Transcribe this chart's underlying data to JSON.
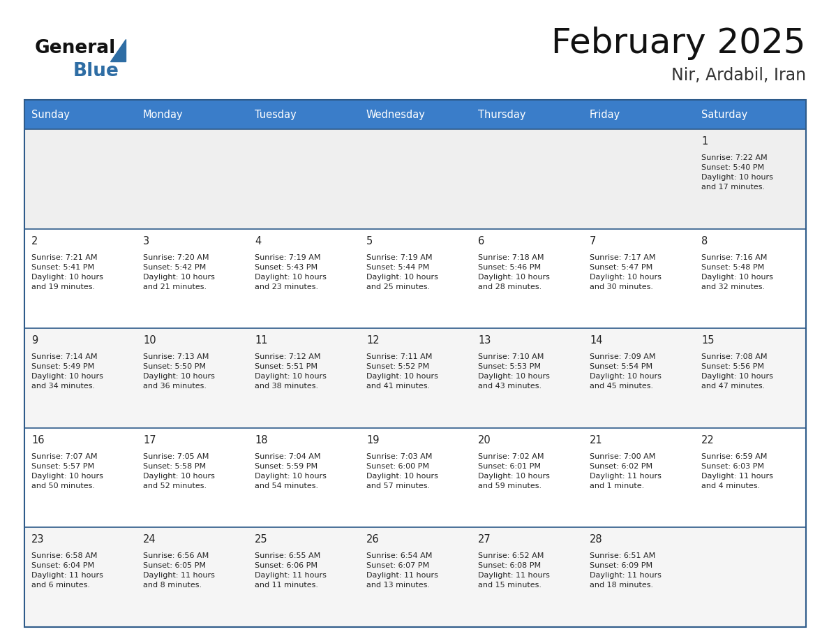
{
  "title": "February 2025",
  "subtitle": "Nir, Ardabil, Iran",
  "days_of_week": [
    "Sunday",
    "Monday",
    "Tuesday",
    "Wednesday",
    "Thursday",
    "Friday",
    "Saturday"
  ],
  "header_bg": "#3A7DC9",
  "header_text": "#FFFFFF",
  "row0_bg": "#EFEFEF",
  "row_bg_white": "#FFFFFF",
  "row_bg_gray": "#F5F5F5",
  "divider_color": "#2E5B8A",
  "text_color": "#222222",
  "title_color": "#111111",
  "subtitle_color": "#333333",
  "logo_general_color": "#111111",
  "logo_blue_color": "#2E6DA4",
  "logo_triangle_color": "#2E6DA4",
  "calendar_data": [
    [
      {
        "day": null,
        "info": null
      },
      {
        "day": null,
        "info": null
      },
      {
        "day": null,
        "info": null
      },
      {
        "day": null,
        "info": null
      },
      {
        "day": null,
        "info": null
      },
      {
        "day": null,
        "info": null
      },
      {
        "day": 1,
        "info": "Sunrise: 7:22 AM\nSunset: 5:40 PM\nDaylight: 10 hours\nand 17 minutes."
      }
    ],
    [
      {
        "day": 2,
        "info": "Sunrise: 7:21 AM\nSunset: 5:41 PM\nDaylight: 10 hours\nand 19 minutes."
      },
      {
        "day": 3,
        "info": "Sunrise: 7:20 AM\nSunset: 5:42 PM\nDaylight: 10 hours\nand 21 minutes."
      },
      {
        "day": 4,
        "info": "Sunrise: 7:19 AM\nSunset: 5:43 PM\nDaylight: 10 hours\nand 23 minutes."
      },
      {
        "day": 5,
        "info": "Sunrise: 7:19 AM\nSunset: 5:44 PM\nDaylight: 10 hours\nand 25 minutes."
      },
      {
        "day": 6,
        "info": "Sunrise: 7:18 AM\nSunset: 5:46 PM\nDaylight: 10 hours\nand 28 minutes."
      },
      {
        "day": 7,
        "info": "Sunrise: 7:17 AM\nSunset: 5:47 PM\nDaylight: 10 hours\nand 30 minutes."
      },
      {
        "day": 8,
        "info": "Sunrise: 7:16 AM\nSunset: 5:48 PM\nDaylight: 10 hours\nand 32 minutes."
      }
    ],
    [
      {
        "day": 9,
        "info": "Sunrise: 7:14 AM\nSunset: 5:49 PM\nDaylight: 10 hours\nand 34 minutes."
      },
      {
        "day": 10,
        "info": "Sunrise: 7:13 AM\nSunset: 5:50 PM\nDaylight: 10 hours\nand 36 minutes."
      },
      {
        "day": 11,
        "info": "Sunrise: 7:12 AM\nSunset: 5:51 PM\nDaylight: 10 hours\nand 38 minutes."
      },
      {
        "day": 12,
        "info": "Sunrise: 7:11 AM\nSunset: 5:52 PM\nDaylight: 10 hours\nand 41 minutes."
      },
      {
        "day": 13,
        "info": "Sunrise: 7:10 AM\nSunset: 5:53 PM\nDaylight: 10 hours\nand 43 minutes."
      },
      {
        "day": 14,
        "info": "Sunrise: 7:09 AM\nSunset: 5:54 PM\nDaylight: 10 hours\nand 45 minutes."
      },
      {
        "day": 15,
        "info": "Sunrise: 7:08 AM\nSunset: 5:56 PM\nDaylight: 10 hours\nand 47 minutes."
      }
    ],
    [
      {
        "day": 16,
        "info": "Sunrise: 7:07 AM\nSunset: 5:57 PM\nDaylight: 10 hours\nand 50 minutes."
      },
      {
        "day": 17,
        "info": "Sunrise: 7:05 AM\nSunset: 5:58 PM\nDaylight: 10 hours\nand 52 minutes."
      },
      {
        "day": 18,
        "info": "Sunrise: 7:04 AM\nSunset: 5:59 PM\nDaylight: 10 hours\nand 54 minutes."
      },
      {
        "day": 19,
        "info": "Sunrise: 7:03 AM\nSunset: 6:00 PM\nDaylight: 10 hours\nand 57 minutes."
      },
      {
        "day": 20,
        "info": "Sunrise: 7:02 AM\nSunset: 6:01 PM\nDaylight: 10 hours\nand 59 minutes."
      },
      {
        "day": 21,
        "info": "Sunrise: 7:00 AM\nSunset: 6:02 PM\nDaylight: 11 hours\nand 1 minute."
      },
      {
        "day": 22,
        "info": "Sunrise: 6:59 AM\nSunset: 6:03 PM\nDaylight: 11 hours\nand 4 minutes."
      }
    ],
    [
      {
        "day": 23,
        "info": "Sunrise: 6:58 AM\nSunset: 6:04 PM\nDaylight: 11 hours\nand 6 minutes."
      },
      {
        "day": 24,
        "info": "Sunrise: 6:56 AM\nSunset: 6:05 PM\nDaylight: 11 hours\nand 8 minutes."
      },
      {
        "day": 25,
        "info": "Sunrise: 6:55 AM\nSunset: 6:06 PM\nDaylight: 11 hours\nand 11 minutes."
      },
      {
        "day": 26,
        "info": "Sunrise: 6:54 AM\nSunset: 6:07 PM\nDaylight: 11 hours\nand 13 minutes."
      },
      {
        "day": 27,
        "info": "Sunrise: 6:52 AM\nSunset: 6:08 PM\nDaylight: 11 hours\nand 15 minutes."
      },
      {
        "day": 28,
        "info": "Sunrise: 6:51 AM\nSunset: 6:09 PM\nDaylight: 11 hours\nand 18 minutes."
      },
      {
        "day": null,
        "info": null
      }
    ]
  ]
}
